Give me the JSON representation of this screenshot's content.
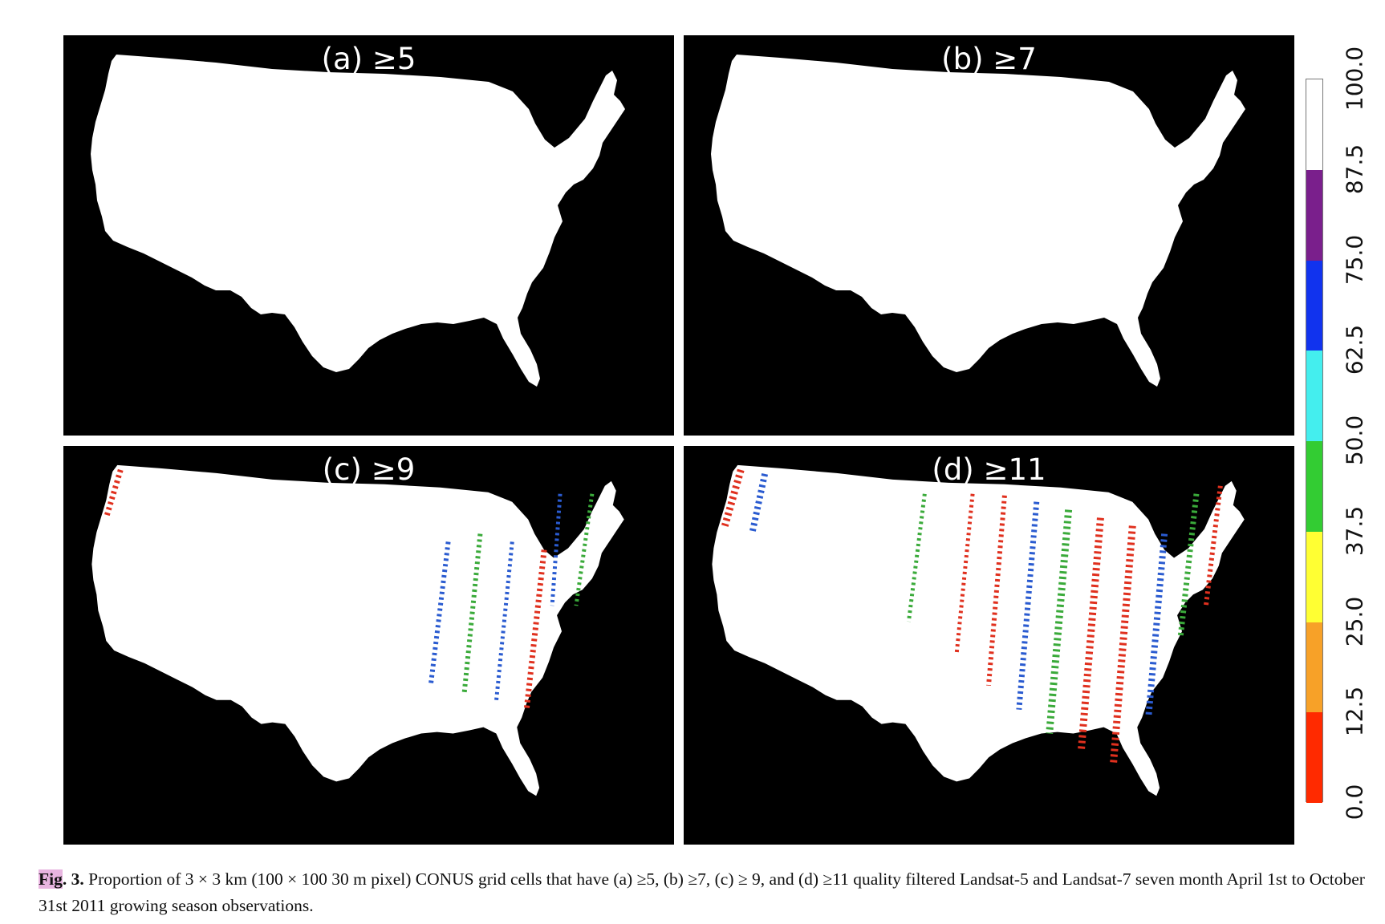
{
  "panels": [
    {
      "id": "a",
      "title": "(a) ≥5"
    },
    {
      "id": "b",
      "title": "(b) ≥7"
    },
    {
      "id": "c",
      "title": "(c) ≥9"
    },
    {
      "id": "d",
      "title": "(d) ≥11"
    }
  ],
  "colorbar": {
    "ticks": [
      "0.0",
      "12.5",
      "25.0",
      "37.5",
      "50.0",
      "62.5",
      "75.0",
      "87.5",
      "100.0"
    ],
    "colors": [
      "#ff2a00",
      "#f7a128",
      "#ffff33",
      "#33cc33",
      "#44eeee",
      "#1133ee",
      "#7a1f8c",
      "#ffffff"
    ],
    "background_color": "#000000",
    "land_color": "#ffffff"
  },
  "caption": {
    "label_highlight": "Fig",
    "label_rest": ". 3.",
    "text": "Proportion of 3 × 3 km (100 × 100 30 m pixel) CONUS grid cells that have (a) ≥5, (b) ≥7, (c) ≥ 9, and (d) ≥11 quality filtered Landsat-5 and Landsat-7 seven month April 1st to October 31st 2011 growing season observations."
  }
}
